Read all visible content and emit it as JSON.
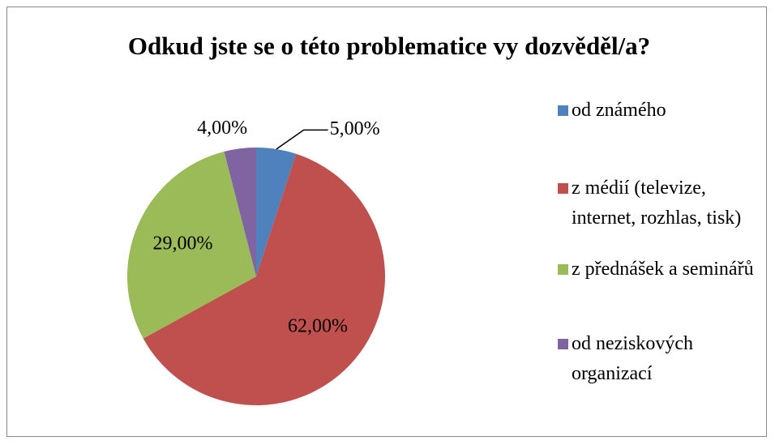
{
  "chart_data": {
    "type": "pie",
    "title": "Odkud jste se o této problematice vy dozvěděl/a?",
    "categories": [
      "od známého",
      "z médií (televize, internet, rozhlas, tisk)",
      "z přednášek a seminářů",
      "od neziskových organizací"
    ],
    "values": [
      5,
      62,
      29,
      4
    ],
    "value_labels": [
      "5,00%",
      "62,00%",
      "29,00%",
      "4,00%"
    ],
    "colors": [
      "#4f81bd",
      "#c0504d",
      "#9bbb59",
      "#8064a2"
    ],
    "legend": "right"
  }
}
